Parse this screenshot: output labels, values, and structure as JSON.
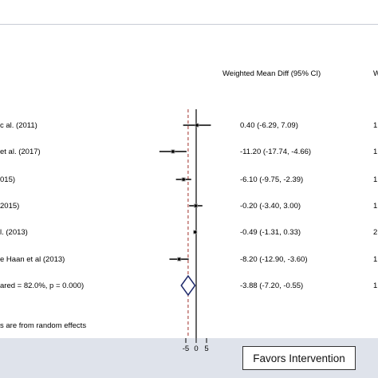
{
  "header": {
    "ci_column": "Weighted Mean Diff (95% CI)",
    "weight_column": "W"
  },
  "studies": [
    {
      "label": "c al. (2011)",
      "ci_text": "0.40 (-6.29, 7.09)",
      "weight_text": "1"
    },
    {
      "label": "et al. (2017)",
      "ci_text": "-11.20 (-17.74, -4.66)",
      "weight_text": "1"
    },
    {
      "label": "015)",
      "ci_text": "-6.10 (-9.75, -2.39)",
      "weight_text": "1"
    },
    {
      "label": "2015)",
      "ci_text": "-0.20 (-3.40, 3.00)",
      "weight_text": "1"
    },
    {
      "label": "l. (2013)",
      "ci_text": "-0.49 (-1.31, 0.33)",
      "weight_text": "2"
    },
    {
      "label": "e Haan et al (2013)",
      "ci_text": "-8.20 (-12.90, -3.60)",
      "weight_text": "1"
    }
  ],
  "overall": {
    "label": "ared = 82.0%, p = 0.000)",
    "ci_text": "-3.88 (-7.20, -0.55)",
    "weight_text": "1"
  },
  "note": "s are from random effects",
  "x_axis": {
    "ticks": [
      "-5",
      "0",
      "5"
    ]
  },
  "favors_label": "Favors Intervention",
  "colors": {
    "null_line": "#000000",
    "pooled_line": "#a0302a",
    "diamond": "#1f2a6b",
    "band": "#dfe3eb"
  },
  "chart_data": {
    "type": "forest",
    "measure": "Weighted Mean Diff (95% CI)",
    "studies": [
      {
        "label": "c al. (2011)",
        "estimate": 0.4,
        "lower": -6.29,
        "upper": 7.09
      },
      {
        "label": "et al. (2017)",
        "estimate": -11.2,
        "lower": -17.74,
        "upper": -4.66
      },
      {
        "label": "015)",
        "estimate": -6.1,
        "lower": -9.75,
        "upper": -2.39
      },
      {
        "label": "2015)",
        "estimate": -0.2,
        "lower": -3.4,
        "upper": 3.0
      },
      {
        "label": "l. (2013)",
        "estimate": -0.49,
        "lower": -1.31,
        "upper": 0.33
      },
      {
        "label": "e Haan et al (2013)",
        "estimate": -8.2,
        "lower": -12.9,
        "upper": -3.6
      }
    ],
    "overall": {
      "estimate": -3.88,
      "lower": -7.2,
      "upper": -0.55
    },
    "xticks": [
      -5,
      0,
      5
    ],
    "null_value": 0
  }
}
